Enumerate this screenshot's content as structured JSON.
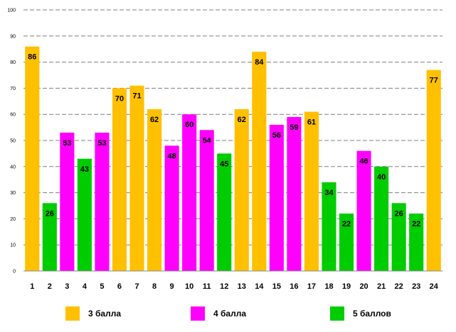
{
  "chart_data": {
    "type": "bar",
    "title": "",
    "xlabel": "",
    "ylabel": "",
    "ylim": [
      0,
      100
    ],
    "yticks": [
      0,
      10,
      20,
      30,
      40,
      50,
      60,
      70,
      80,
      90,
      100
    ],
    "grid": true,
    "legend_position": "bottom",
    "categories": [
      "1",
      "2",
      "3",
      "4",
      "5",
      "6",
      "7",
      "8",
      "9",
      "10",
      "11",
      "12",
      "13",
      "14",
      "15",
      "16",
      "17",
      "18",
      "19",
      "20",
      "21",
      "22",
      "23",
      "24"
    ],
    "values": [
      86,
      26,
      53,
      43,
      53,
      70,
      71,
      62,
      48,
      60,
      54,
      45,
      62,
      84,
      56,
      59,
      61,
      34,
      22,
      46,
      40,
      26,
      22,
      77
    ],
    "groups": [
      "3",
      "5",
      "4",
      "5",
      "4",
      "3",
      "3",
      "3",
      "4",
      "4",
      "4",
      "5",
      "3",
      "3",
      "4",
      "4",
      "3",
      "5",
      "5",
      "4",
      "5",
      "5",
      "5",
      "3"
    ],
    "series": [
      {
        "key": "3",
        "name": "3 балла",
        "color": "#FFC000"
      },
      {
        "key": "4",
        "name": "4 балла",
        "color": "#FF00FF"
      },
      {
        "key": "5",
        "name": "5 баллов",
        "color": "#00CC00"
      }
    ]
  }
}
